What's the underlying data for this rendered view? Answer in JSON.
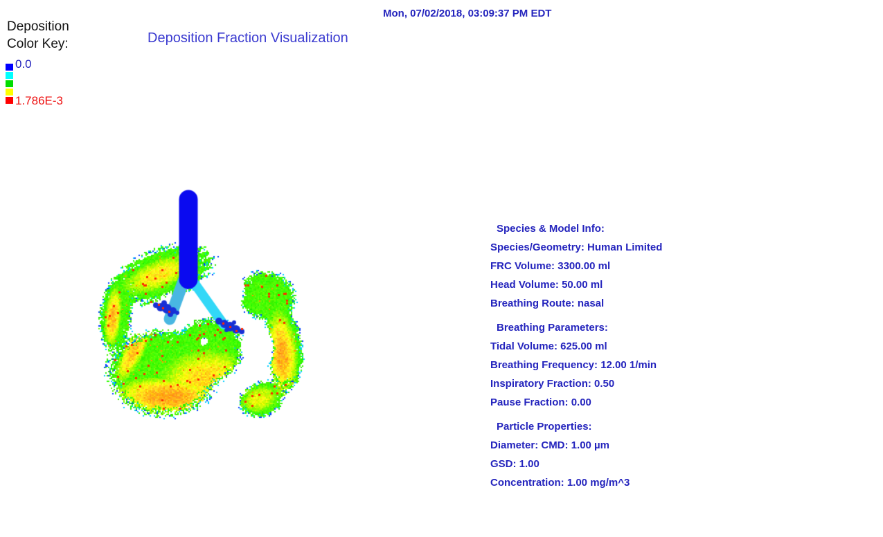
{
  "header": {
    "timestamp": "Mon, 07/02/2018, 03:09:37 PM EDT"
  },
  "title": "Deposition Fraction Visualization",
  "color_key": {
    "label": "Deposition\nColor Key:",
    "min_label": "0.0",
    "max_label": "1.786E-3",
    "swatches": [
      {
        "name": "blue",
        "color": "#0000ff"
      },
      {
        "name": "cyan",
        "color": "#00ffff"
      },
      {
        "name": "green",
        "color": "#00dd00"
      },
      {
        "name": "yellow",
        "color": "#ffff00"
      },
      {
        "name": "red",
        "color": "#ff0000"
      }
    ]
  },
  "colors": {
    "text_blue": "#2424bd",
    "title_blue": "#3b3bd0",
    "max_red": "#ee1111",
    "trachea": "#0a0af0",
    "left_bronchus": "#49b7e2",
    "right_bronchus": "#32d8f7",
    "airway_cluster": "#1730d6",
    "hot_spot": "#ff2a00"
  },
  "visualization": {
    "description": "3D lung airway deposition fraction heatmap (blue trachea and bronchi, green-yellow-orange lung lobes with speckled deposition hot spots)"
  },
  "info_panel": {
    "sections": [
      {
        "header": "Species & Model Info:",
        "lines": [
          "Species/Geometry: Human Limited",
          "FRC Volume: 3300.00 ml",
          "Head Volume: 50.00 ml",
          "Breathing Route: nasal"
        ]
      },
      {
        "header": "Breathing Parameters:",
        "lines": [
          "Tidal Volume: 625.00 ml",
          "Breathing Frequency: 12.00 1/min",
          "Inspiratory Fraction: 0.50",
          "Pause Fraction: 0.00"
        ]
      },
      {
        "header": "Particle Properties:",
        "lines": [
          "Diameter: CMD: 1.00 µm",
          "GSD: 1.00",
          "Concentration: 1.00 mg/m^3"
        ]
      }
    ]
  }
}
